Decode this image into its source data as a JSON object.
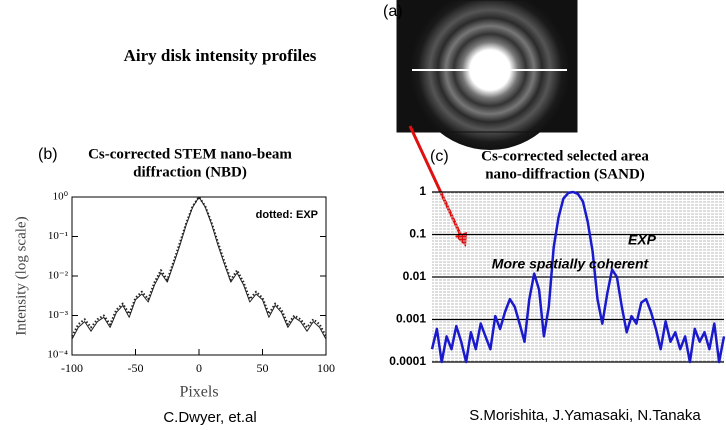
{
  "heading": "Airy disk intensity profiles",
  "image": {
    "label": "(a)"
  },
  "chart_data": [
    {
      "type": "line",
      "panel_label": "(b)",
      "title": [
        "Cs-corrected STEM nano-beam",
        "diffraction (NBD)"
      ],
      "y_label": "Intensity (log scale)",
      "x_label": "Pixels",
      "annotations": [
        "dotted: EXP"
      ],
      "credit": "C.Dwyer, et.al",
      "log_y": true,
      "xlim": [
        -100,
        100
      ],
      "xticks": [
        -100,
        -50,
        0,
        50,
        100
      ],
      "ylim": [
        0.0001,
        1
      ],
      "yticks": [
        {
          "value": 0.0001,
          "label": "10⁻⁴"
        },
        {
          "value": 0.001,
          "label": "10⁻³"
        },
        {
          "value": 0.01,
          "label": "10⁻²"
        },
        {
          "value": 0.1,
          "label": "10⁻¹"
        },
        {
          "value": 1,
          "label": "10⁰"
        }
      ],
      "x": [
        -100,
        -95,
        -90,
        -85,
        -80,
        -75,
        -70,
        -65,
        -60,
        -55,
        -50,
        -45,
        -40,
        -35,
        -30,
        -25,
        -20,
        -15,
        -10,
        -5,
        0,
        5,
        10,
        15,
        20,
        25,
        30,
        35,
        40,
        45,
        50,
        55,
        60,
        65,
        70,
        75,
        80,
        85,
        90,
        95,
        100
      ],
      "series": [
        {
          "color": "#222222",
          "dash": false,
          "values": [
            0.00025,
            0.0005,
            0.0007,
            0.0004,
            0.0007,
            0.0009,
            0.0005,
            0.0012,
            0.0018,
            0.0009,
            0.0025,
            0.0035,
            0.0022,
            0.006,
            0.012,
            0.007,
            0.02,
            0.06,
            0.2,
            0.55,
            1,
            0.55,
            0.2,
            0.06,
            0.02,
            0.007,
            0.012,
            0.006,
            0.0022,
            0.0035,
            0.0025,
            0.0009,
            0.0018,
            0.0012,
            0.0005,
            0.0009,
            0.0007,
            0.0004,
            0.0007,
            0.0005,
            0.00025
          ]
        },
        {
          "color": "#222222",
          "dash": true,
          "values": [
            0.0003,
            0.0006,
            0.0008,
            0.0005,
            0.0008,
            0.001,
            0.0006,
            0.0014,
            0.002,
            0.0011,
            0.0028,
            0.004,
            0.0026,
            0.007,
            0.014,
            0.008,
            0.023,
            0.07,
            0.22,
            0.58,
            1,
            0.58,
            0.22,
            0.07,
            0.023,
            0.008,
            0.014,
            0.007,
            0.0026,
            0.004,
            0.0028,
            0.0011,
            0.002,
            0.0014,
            0.0006,
            0.001,
            0.0008,
            0.0005,
            0.0008,
            0.0006,
            0.0003
          ]
        }
      ]
    },
    {
      "type": "line",
      "panel_label": "(c)",
      "title": [
        "Cs-corrected selected area",
        "nano-diffraction (SAND)"
      ],
      "annotations": [
        "EXP",
        "More spatially coherent"
      ],
      "credit": "S.Morishita, J.Yamasaki, N.Tanaka",
      "log_y": true,
      "ylim": [
        0.0001,
        1
      ],
      "yticks": [
        0.0001,
        0.001,
        0.01,
        0.1,
        1
      ],
      "color": "#1a1acc",
      "values": [
        0.0002,
        0.0006,
        0.0001,
        0.0004,
        0.0002,
        0.0007,
        0.0003,
        0.0001,
        0.0005,
        0.0002,
        0.0008,
        0.0004,
        0.0002,
        0.0012,
        0.0006,
        0.0015,
        0.003,
        0.002,
        0.0008,
        0.0003,
        0.003,
        0.012,
        0.005,
        0.0004,
        0.002,
        0.05,
        0.25,
        0.7,
        0.95,
        1,
        0.9,
        0.6,
        0.2,
        0.04,
        0.003,
        0.0008,
        0.004,
        0.015,
        0.01,
        0.002,
        0.0005,
        0.0012,
        0.0008,
        0.0025,
        0.003,
        0.0015,
        0.0006,
        0.0002,
        0.0009,
        0.0003,
        0.0005,
        0.0002,
        0.0004,
        0.0001,
        0.0006,
        0.0003,
        0.0005,
        0.0002,
        0.0008,
        0.0001,
        0.0004
      ]
    }
  ]
}
